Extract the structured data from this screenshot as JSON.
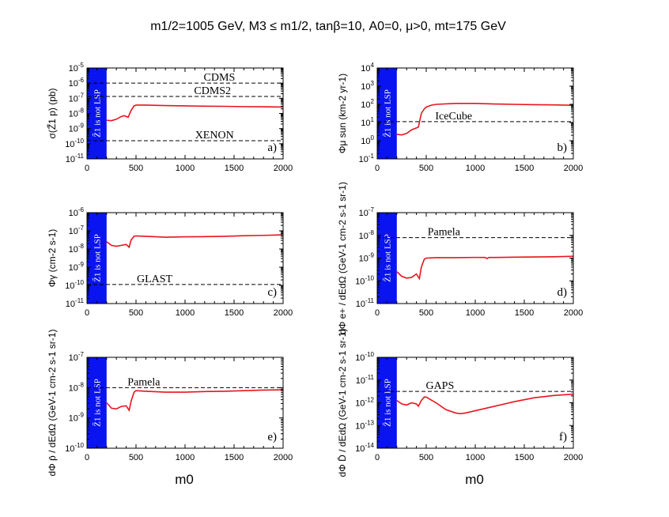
{
  "figure": {
    "title": "m1/2=1005 GeV, M3 ≤ m1/2, tanβ=10, A0=0, μ>0, mt=175 GeV",
    "x_axis_label": "m0",
    "band_label": "Z̃1 is not LSP",
    "colors": {
      "curve": "#e8141e",
      "band": "#0a14f0",
      "frame": "#000000",
      "exp_line": "#000000"
    }
  },
  "chart_data": [
    {
      "type": "line",
      "panel_label": "a)",
      "ylabel": "σ(Z̃1 p) (pb)",
      "xlim": [
        0,
        2000
      ],
      "ylim_log10": [
        -11,
        -5
      ],
      "xticks": [
        0,
        500,
        1000,
        1500,
        2000
      ],
      "xtick_labels": [
        "0",
        "500",
        "1000",
        "1500",
        "2000"
      ],
      "ytick_labels": [
        "10-11",
        "10-10",
        "10-9",
        "10-8",
        "10-7",
        "10-6",
        "10-5"
      ],
      "band_x": [
        0,
        200
      ],
      "limits": [
        {
          "name": "CDMS",
          "log10": -6.0,
          "label_x": 1350
        },
        {
          "name": "CDMS2",
          "log10": -6.88,
          "label_x": 1280
        },
        {
          "name": "XENON",
          "log10": -9.8,
          "label_x": 1300
        }
      ],
      "series": {
        "x": [
          200,
          250,
          300,
          350,
          380,
          420,
          450,
          480,
          500,
          600,
          800,
          1000,
          1200,
          1400,
          1600,
          1800,
          2000
        ],
        "log10y": [
          -8.45,
          -8.48,
          -8.38,
          -8.2,
          -8.15,
          -8.25,
          -7.8,
          -7.5,
          -7.45,
          -7.45,
          -7.48,
          -7.5,
          -7.52,
          -7.53,
          -7.55,
          -7.56,
          -7.58
        ]
      }
    },
    {
      "type": "line",
      "panel_label": "b)",
      "ylabel": "Φμ sun (km-2 yr-1)",
      "xlim": [
        0,
        2000
      ],
      "ylim_log10": [
        -1,
        4
      ],
      "xticks": [
        0,
        500,
        1000,
        1500,
        2000
      ],
      "xtick_labels": [
        "0",
        "500",
        "1000",
        "1500",
        "2000"
      ],
      "ytick_labels": [
        "10-1",
        "100",
        "101",
        "102",
        "103",
        "104"
      ],
      "band_x": [
        0,
        200
      ],
      "limits": [
        {
          "name": "IceCube",
          "log10": 1.05,
          "label_x": 780
        }
      ],
      "series": {
        "x": [
          200,
          250,
          300,
          350,
          400,
          420,
          450,
          480,
          500,
          550,
          600,
          800,
          1000,
          1200,
          1400,
          1600,
          1800,
          2000
        ],
        "log10y": [
          0.35,
          0.32,
          0.4,
          0.6,
          0.7,
          0.75,
          1.5,
          1.75,
          1.85,
          1.95,
          2.0,
          2.05,
          2.05,
          2.02,
          2.0,
          1.98,
          1.97,
          1.95
        ]
      }
    },
    {
      "type": "line",
      "panel_label": "c)",
      "ylabel": "Φγ (cm-2 s-1)",
      "xlim": [
        0,
        2000
      ],
      "ylim_log10": [
        -11,
        -6
      ],
      "xticks": [
        0,
        500,
        1000,
        1500,
        2000
      ],
      "xtick_labels": [
        "0",
        "500",
        "1000",
        "1500",
        "2000"
      ],
      "ytick_labels": [
        "10-11",
        "10-10",
        "10-9",
        "10-8",
        "10-7",
        "10-6"
      ],
      "band_x": [
        0,
        200
      ],
      "limits": [
        {
          "name": "GLAST",
          "log10": -9.95,
          "label_x": 690
        }
      ],
      "series": {
        "x": [
          200,
          250,
          300,
          350,
          400,
          430,
          450,
          480,
          500,
          600,
          800,
          1000,
          1200,
          1400,
          1600,
          1800,
          2000
        ],
        "log10y": [
          -7.6,
          -7.8,
          -7.85,
          -7.8,
          -7.75,
          -7.9,
          -7.5,
          -7.3,
          -7.28,
          -7.3,
          -7.35,
          -7.33,
          -7.32,
          -7.3,
          -7.27,
          -7.25,
          -7.22
        ]
      }
    },
    {
      "type": "line",
      "panel_label": "d)",
      "ylabel": "dΦ e+ / dEdΩ (GeV-1 cm-2 s-1 sr-1)",
      "xlim": [
        0,
        2000
      ],
      "ylim_log10": [
        -11,
        -7
      ],
      "xticks": [
        0,
        500,
        1000,
        1500,
        2000
      ],
      "xtick_labels": [
        "0",
        "500",
        "1000",
        "1500",
        "2000"
      ],
      "ytick_labels": [
        "10-11",
        "10-10",
        "10-9",
        "10-8",
        "10-7"
      ],
      "band_x": [
        0,
        200
      ],
      "limits": [
        {
          "name": "Pamela",
          "log10": -8.1,
          "label_x": 680
        }
      ],
      "series": {
        "x": [
          200,
          250,
          300,
          350,
          400,
          430,
          450,
          480,
          500,
          600,
          800,
          1000,
          1100,
          1120,
          1140,
          1200,
          1400,
          1600,
          1800,
          2000
        ],
        "log10y": [
          -9.6,
          -9.8,
          -9.88,
          -9.85,
          -9.7,
          -9.9,
          -9.4,
          -9.05,
          -9.0,
          -8.98,
          -8.98,
          -8.97,
          -8.97,
          -9.02,
          -8.97,
          -8.97,
          -8.96,
          -8.95,
          -8.94,
          -8.92
        ]
      }
    },
    {
      "type": "line",
      "panel_label": "e)",
      "ylabel": "dΦ p̄ / dEdΩ (GeV-1 cm-2 s-1 sr-1)",
      "xlim": [
        0,
        2000
      ],
      "ylim_log10": [
        -10,
        -7
      ],
      "xticks": [
        0,
        500,
        1000,
        1500,
        2000
      ],
      "xtick_labels": [
        "0",
        "500",
        "1000",
        "1500",
        "2000"
      ],
      "ytick_labels": [
        "10-10",
        "10-9",
        "10-8",
        "10-7"
      ],
      "band_x": [
        0,
        200
      ],
      "limits": [
        {
          "name": "Pamela",
          "log10": -8.0,
          "label_x": 580
        }
      ],
      "series": {
        "x": [
          200,
          250,
          300,
          350,
          400,
          430,
          450,
          480,
          500,
          600,
          800,
          1000,
          1100,
          1200,
          1400,
          1600,
          1800,
          2000
        ],
        "log10y": [
          -8.5,
          -8.68,
          -8.7,
          -8.62,
          -8.6,
          -8.75,
          -8.45,
          -8.15,
          -8.1,
          -8.12,
          -8.15,
          -8.15,
          -8.14,
          -8.13,
          -8.12,
          -8.1,
          -8.08,
          -8.07
        ]
      }
    },
    {
      "type": "line",
      "panel_label": "f)",
      "ylabel": "dΦ D̄ / dEdΩ (GeV-1 cm-2 s-1 sr-1)",
      "xlim": [
        0,
        2000
      ],
      "ylim_log10": [
        -14,
        -10
      ],
      "xticks": [
        0,
        500,
        1000,
        1500,
        2000
      ],
      "xtick_labels": [
        "0",
        "500",
        "1000",
        "1500",
        "2000"
      ],
      "ytick_labels": [
        "10-14",
        "10-13",
        "10-12",
        "10-11",
        "10-10"
      ],
      "band_x": [
        0,
        200
      ],
      "limits": [
        {
          "name": "GAPS",
          "log10": -11.5,
          "label_x": 640
        }
      ],
      "series": {
        "x": [
          200,
          250,
          300,
          350,
          400,
          420,
          450,
          480,
          500,
          600,
          700,
          800,
          850,
          900,
          1000,
          1200,
          1400,
          1600,
          1800,
          2000
        ],
        "log10y": [
          -11.9,
          -12.05,
          -12.1,
          -12.0,
          -12.05,
          -12.15,
          -11.9,
          -11.75,
          -11.75,
          -12.0,
          -12.3,
          -12.45,
          -12.48,
          -12.45,
          -12.35,
          -12.15,
          -11.95,
          -11.78,
          -11.68,
          -11.62
        ]
      }
    }
  ]
}
